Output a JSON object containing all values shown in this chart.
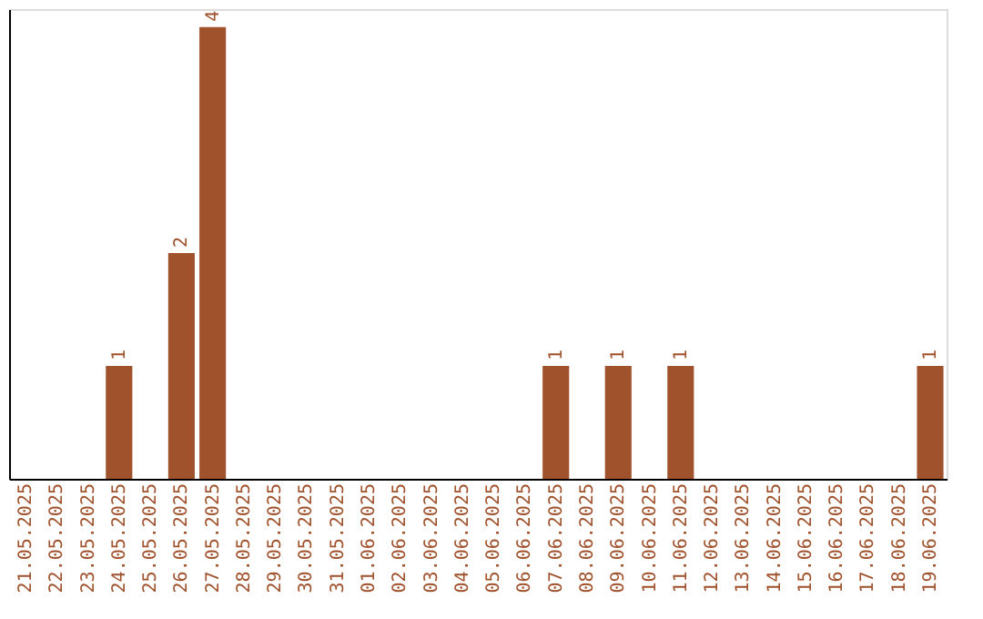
{
  "chart_data": {
    "type": "bar",
    "categories": [
      "21.05.2025",
      "22.05.2025",
      "23.05.2025",
      "24.05.2025",
      "25.05.2025",
      "26.05.2025",
      "27.05.2025",
      "28.05.2025",
      "29.05.2025",
      "30.05.2025",
      "31.05.2025",
      "01.06.2025",
      "02.06.2025",
      "03.06.2025",
      "04.06.2025",
      "05.06.2025",
      "06.06.2025",
      "07.06.2025",
      "08.06.2025",
      "09.06.2025",
      "10.06.2025",
      "11.06.2025",
      "12.06.2025",
      "13.06.2025",
      "14.06.2025",
      "15.06.2025",
      "16.06.2025",
      "17.06.2025",
      "18.06.2025",
      "19.06.2025"
    ],
    "values": [
      0,
      0,
      0,
      1,
      0,
      2,
      4,
      0,
      0,
      0,
      0,
      0,
      0,
      0,
      0,
      0,
      0,
      1,
      0,
      1,
      0,
      1,
      0,
      0,
      0,
      0,
      0,
      0,
      0,
      1
    ],
    "value_labels": [
      null,
      null,
      null,
      "1",
      null,
      "2",
      "4",
      null,
      null,
      null,
      null,
      null,
      null,
      null,
      null,
      null,
      null,
      "1",
      null,
      "1",
      null,
      "1",
      null,
      null,
      null,
      null,
      null,
      null,
      null,
      "1"
    ],
    "color": "#a0522d",
    "tick_labels": "x",
    "grid": false
  }
}
